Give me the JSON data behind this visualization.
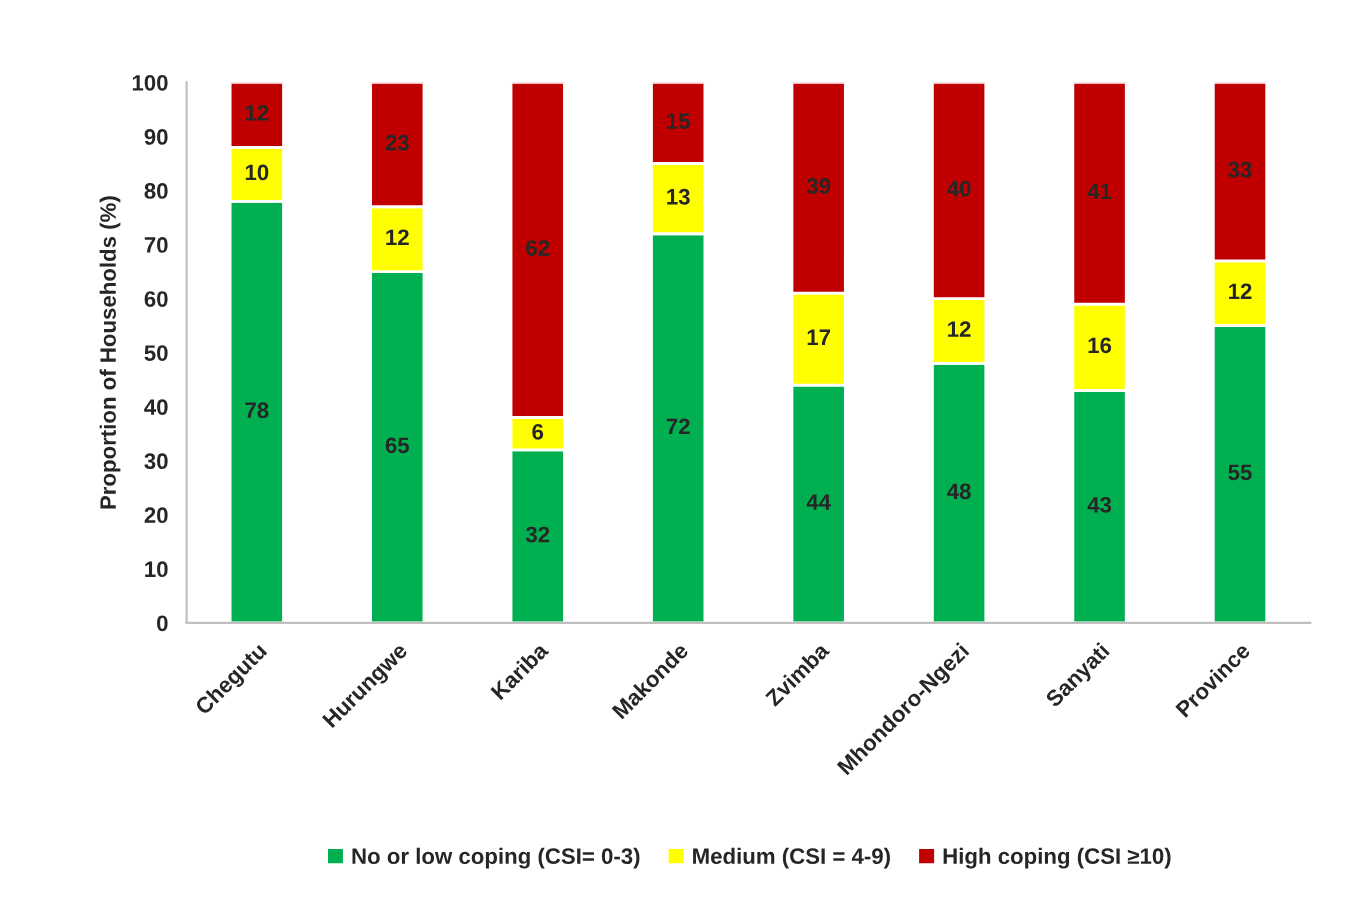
{
  "chart_data": {
    "type": "bar",
    "stacked": true,
    "ylabel": "Proportion of Households (%)",
    "categories": [
      "Chegutu",
      "Hurungwe",
      "Kariba",
      "Makonde",
      "Zvimba",
      "Mhondoro-Ngezi",
      "Sanyati",
      "Province"
    ],
    "series": [
      {
        "name": "No or low coping (CSI= 0-3)",
        "color": "#00b050",
        "values": [
          78,
          65,
          32,
          72,
          44,
          48,
          43,
          55
        ]
      },
      {
        "name": "Medium (CSI = 4-9)",
        "color": "#ffff00",
        "values": [
          10,
          12,
          6,
          13,
          17,
          12,
          16,
          12
        ]
      },
      {
        "name": "High coping (CSI ≥10)",
        "color": "#c00000",
        "values": [
          12,
          23,
          62,
          15,
          39,
          40,
          41,
          33
        ]
      }
    ],
    "ylim": [
      0,
      100
    ],
    "yticks": [
      0,
      10,
      20,
      30,
      40,
      50,
      60,
      70,
      80,
      90,
      100
    ],
    "data_labels": true,
    "grid": false,
    "legend": "bottom"
  }
}
